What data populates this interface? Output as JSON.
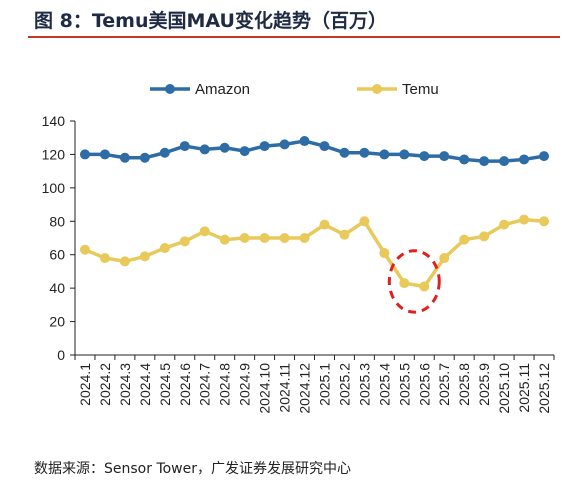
{
  "header": {
    "title": "图 8：Temu美国MAU变化趋势（百万）"
  },
  "footer": {
    "source": "数据来源：Sensor Tower，广发证券发展研究中心"
  },
  "colors": {
    "amazon": "#2e6ca6",
    "temu": "#e8c95a",
    "highlight": "#e02020",
    "accent_rule": "#c0392b"
  },
  "chart_data": {
    "type": "line",
    "title": "",
    "xlabel": "",
    "ylabel": "",
    "ylim": [
      0,
      140
    ],
    "yticks": [
      0,
      20,
      40,
      60,
      80,
      100,
      120,
      140
    ],
    "legend_position": "top",
    "grid": false,
    "categories": [
      "2024.1",
      "2024.2",
      "2024.3",
      "2024.4",
      "2024.5",
      "2024.6",
      "2024.7",
      "2024.8",
      "2024.9",
      "2024.10",
      "2024.11",
      "2024.12",
      "2025.1",
      "2025.2",
      "2025.3",
      "2025.4",
      "2025.5",
      "2025.6",
      "2025.7",
      "2025.8",
      "2025.9",
      "2025.10",
      "2025.11",
      "2025.12"
    ],
    "series": [
      {
        "name": "Amazon",
        "values": [
          120,
          120,
          118,
          118,
          121,
          125,
          123,
          124,
          122,
          125,
          126,
          128,
          125,
          121,
          121,
          120,
          120,
          119,
          119,
          117,
          116,
          116,
          117,
          119
        ]
      },
      {
        "name": "Temu",
        "values": [
          63,
          58,
          56,
          59,
          64,
          68,
          74,
          69,
          70,
          70,
          70,
          70,
          78,
          72,
          80,
          61,
          43,
          41,
          58,
          69,
          71,
          78,
          81,
          80
        ]
      }
    ],
    "annotation": {
      "shape": "ellipse",
      "style": "dashed",
      "x_range": [
        "2025.5",
        "2025.6"
      ],
      "y_range": [
        34,
        54
      ]
    }
  }
}
